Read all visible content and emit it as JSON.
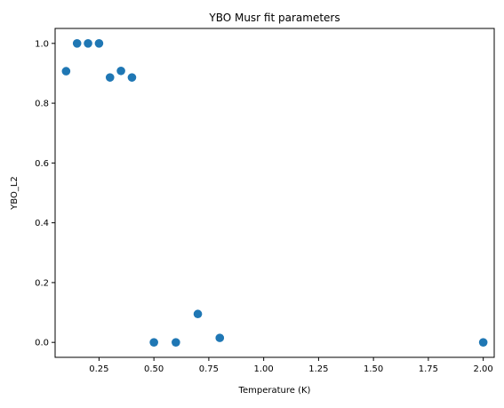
{
  "chart_data": {
    "type": "scatter",
    "title": "YBO Musr fit parameters",
    "xlabel": "Temperature (K)",
    "ylabel": "YBO_L2",
    "xlim": [
      0.05,
      2.05
    ],
    "ylim": [
      -0.05,
      1.05
    ],
    "xticks": [
      0.25,
      0.5,
      0.75,
      1.0,
      1.25,
      1.5,
      1.75,
      2.0
    ],
    "xtick_labels": [
      "0.25",
      "0.50",
      "0.75",
      "1.00",
      "1.25",
      "1.50",
      "1.75",
      "2.00"
    ],
    "yticks": [
      0.0,
      0.2,
      0.4,
      0.6,
      0.8,
      1.0
    ],
    "ytick_labels": [
      "0.0",
      "0.2",
      "0.4",
      "0.6",
      "0.8",
      "1.0"
    ],
    "grid": false,
    "marker_color": "#1f77b4",
    "points": [
      {
        "x": 0.1,
        "y": 0.907
      },
      {
        "x": 0.15,
        "y": 1.0
      },
      {
        "x": 0.2,
        "y": 1.0
      },
      {
        "x": 0.25,
        "y": 1.0
      },
      {
        "x": 0.3,
        "y": 0.886
      },
      {
        "x": 0.35,
        "y": 0.908
      },
      {
        "x": 0.4,
        "y": 0.886
      },
      {
        "x": 0.5,
        "y": 0.0
      },
      {
        "x": 0.6,
        "y": 0.0
      },
      {
        "x": 0.7,
        "y": 0.095
      },
      {
        "x": 0.8,
        "y": 0.015
      },
      {
        "x": 2.0,
        "y": 0.0
      }
    ]
  }
}
